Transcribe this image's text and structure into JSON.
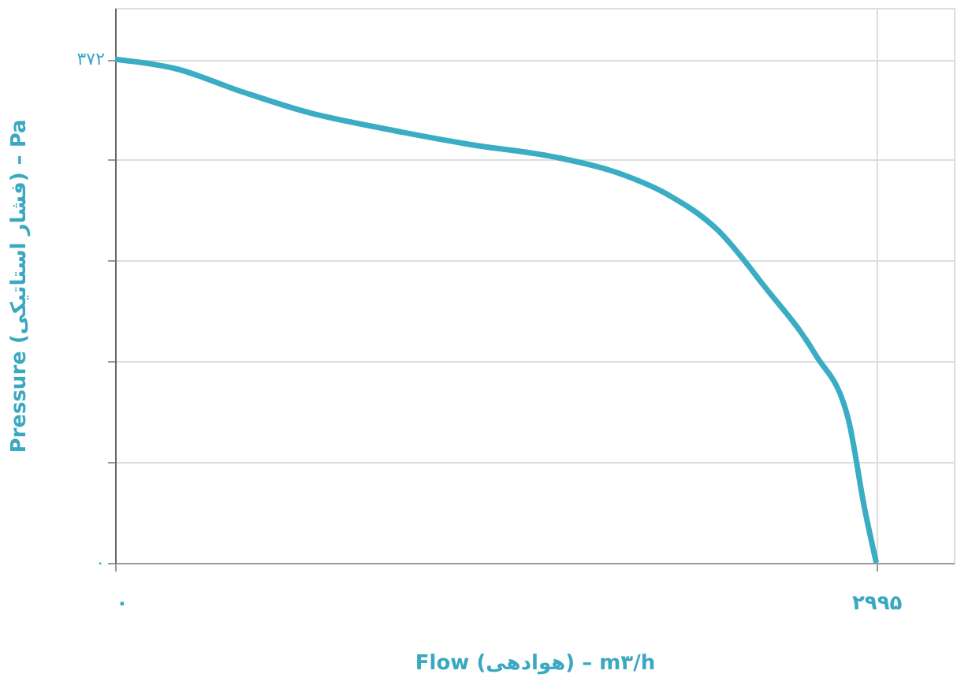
{
  "chart_data": {
    "type": "line",
    "xlabel": "Flow (هوادهی) – m۳/h",
    "ylabel": "Pressure (فشار استاتیکی) – Pa",
    "x": [
      0,
      240,
      500,
      755,
      1080,
      1400,
      1725,
      1980,
      2175,
      2370,
      2560,
      2755,
      2885,
      2950,
      2995
    ],
    "series": [
      {
        "color": "#3aacc4",
        "values": [
          372,
          365,
          348,
          333,
          320,
          309,
          300,
          288,
          272,
          246,
          203,
          154,
          106,
          39,
          0
        ]
      }
    ],
    "xlim": [
      0,
      3300
    ],
    "ylim": [
      0,
      410
    ],
    "xticks": [
      {
        "value": 0,
        "label": "٠"
      },
      {
        "value": 2995,
        "label": "۲۹۹۵"
      }
    ],
    "yticks": [
      {
        "value": 0,
        "label": "٠"
      },
      {
        "value": 74.4,
        "label": null
      },
      {
        "value": 148.8,
        "label": null
      },
      {
        "value": 223.2,
        "label": null
      },
      {
        "value": 297.6,
        "label": null
      },
      {
        "value": 372,
        "label": "۳۷۲"
      }
    ],
    "grid": true,
    "line_style": "solid",
    "marker": "none"
  }
}
